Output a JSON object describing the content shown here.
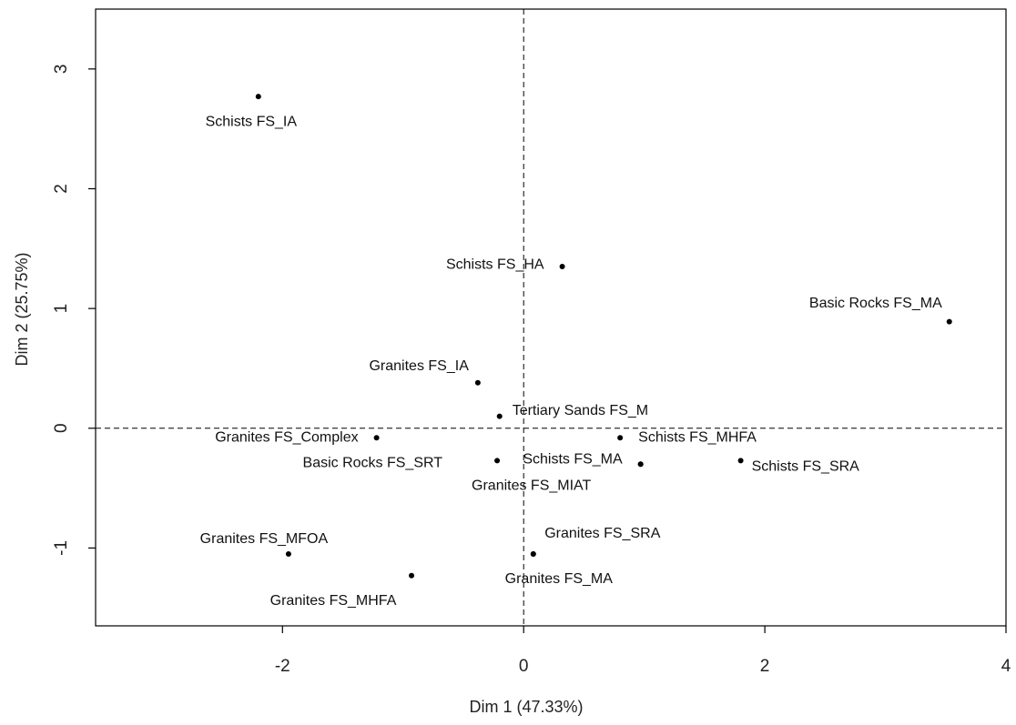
{
  "chart_data": {
    "type": "scatter",
    "title": "",
    "xlabel": "Dim 1 (47.33%)",
    "ylabel": "Dim 2 (25.75%)",
    "xlim": [
      -3.55,
      4.0
    ],
    "ylim": [
      -1.65,
      3.5
    ],
    "x_ticks": [
      -2,
      0,
      2,
      4
    ],
    "y_ticks": [
      -1,
      0,
      1,
      2,
      3
    ],
    "reference_lines": {
      "x": 0,
      "y": 0,
      "style": "dashed"
    },
    "grid": false,
    "points": [
      {
        "label": "Schists FS_IA",
        "x": -2.2,
        "y": 2.77
      },
      {
        "label": "Schists FS_HA",
        "x": 0.32,
        "y": 1.35
      },
      {
        "label": "Basic Rocks FS_MA",
        "x": 3.53,
        "y": 0.89
      },
      {
        "label": "Granites FS_IA",
        "x": -0.38,
        "y": 0.38
      },
      {
        "label": "Tertiary Sands FS_M",
        "x": -0.2,
        "y": 0.1
      },
      {
        "label": "Granites FS_Complex",
        "x": -1.22,
        "y": -0.08
      },
      {
        "label": "Schists FS_MHFA",
        "x": 0.8,
        "y": -0.08
      },
      {
        "label": "Basic Rocks FS_SRT",
        "x": -0.22,
        "y": -0.27
      },
      {
        "label": "Schists FS_MA",
        "x": 0.97,
        "y": -0.3
      },
      {
        "label": "Granites FS_MIAT",
        "x": 0.97,
        "y": -0.3
      },
      {
        "label": "Schists FS_SRA",
        "x": 1.8,
        "y": -0.27
      },
      {
        "label": "Granites FS_MFOA",
        "x": -1.95,
        "y": -1.05
      },
      {
        "label": "Granites FS_SRA",
        "x": 0.08,
        "y": -1.05
      },
      {
        "label": "Granites FS_MA",
        "x": 0.08,
        "y": -1.05
      },
      {
        "label": "Granites FS_MHFA",
        "x": -0.93,
        "y": -1.23
      }
    ]
  }
}
